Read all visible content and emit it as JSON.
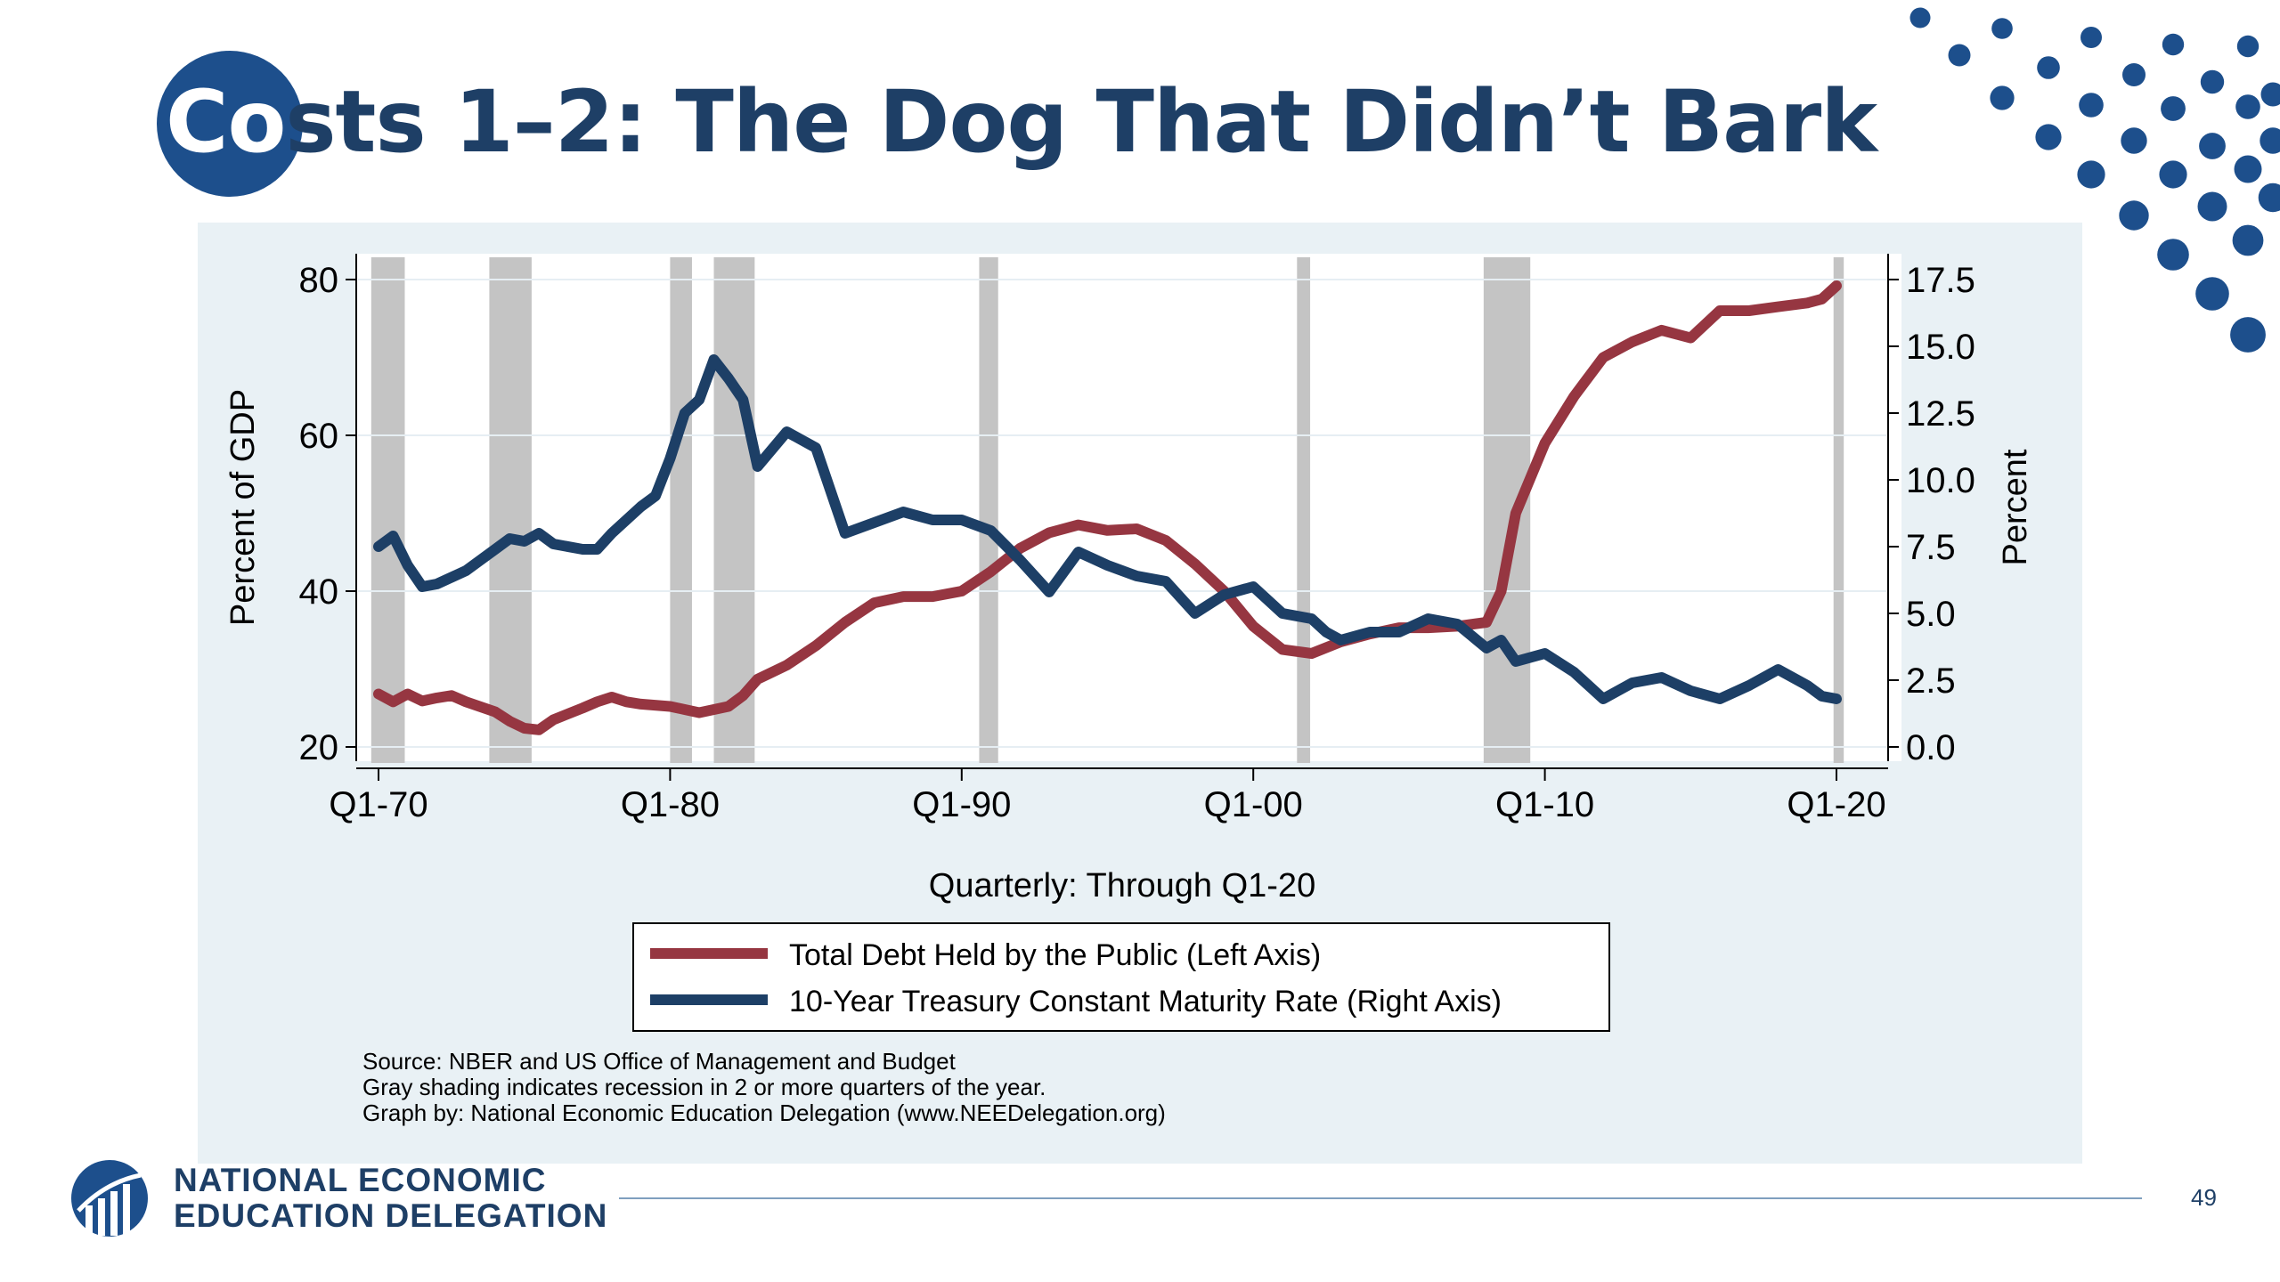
{
  "slide": {
    "title_prefix": "Co",
    "title_rest": "sts 1–2: The Dog That Didn’t Bark",
    "page_number": "49"
  },
  "branding": {
    "org_line1": "NATIONAL ECONOMIC",
    "org_line2": "EDUCATION DELEGATION",
    "accent_color": "#1d4f8c",
    "title_color": "#1e3f66"
  },
  "chart_data": {
    "type": "line",
    "x_label": "Quarterly: Through Q1-20",
    "y_left_label": "Percent of GDP",
    "y_right_label": "Percent",
    "x_range": [
      1970,
      2020
    ],
    "y_left_range": [
      20,
      80
    ],
    "y_right_range": [
      0,
      17.5
    ],
    "x_ticks": [
      {
        "x": 1970,
        "label": "Q1-70"
      },
      {
        "x": 1980,
        "label": "Q1-80"
      },
      {
        "x": 1990,
        "label": "Q1-90"
      },
      {
        "x": 2000,
        "label": "Q1-00"
      },
      {
        "x": 2010,
        "label": "Q1-10"
      },
      {
        "x": 2020,
        "label": "Q1-20"
      }
    ],
    "y_left_ticks": [
      "20",
      "40",
      "60",
      "80"
    ],
    "y_right_ticks": [
      "0.0",
      "2.5",
      "5.0",
      "7.5",
      "10.0",
      "12.5",
      "15.0",
      "17.5"
    ],
    "recessions": [
      [
        1969.75,
        1970.9
      ],
      [
        1973.8,
        1975.25
      ],
      [
        1980.0,
        1980.75
      ],
      [
        1981.5,
        1982.9
      ],
      [
        1990.6,
        1991.25
      ],
      [
        2001.5,
        2001.95
      ],
      [
        2007.9,
        2009.5
      ],
      [
        2019.9,
        2020.25
      ]
    ],
    "legend": {
      "placement": "bottom",
      "debt_label": "Total Debt Held by the Public (Left Axis)",
      "rate_label": "10-Year Treasury Constant Maturity Rate (Right Axis)"
    },
    "notes": [
      "Source: NBER and US Office of Management and Budget",
      "Gray shading indicates recession in 2 or more quarters of the year.",
      "Graph by: National Economic Education Delegation (www.NEEDelegation.org)"
    ],
    "series": [
      {
        "key": "debt",
        "axis": "left",
        "color": "#963641",
        "points": [
          [
            1970,
            26.8
          ],
          [
            1970.5,
            25.8
          ],
          [
            1971,
            26.8
          ],
          [
            1971.5,
            25.9
          ],
          [
            1972,
            26.3
          ],
          [
            1972.5,
            26.6
          ],
          [
            1973,
            25.8
          ],
          [
            1974,
            24.5
          ],
          [
            1974.5,
            23.3
          ],
          [
            1975,
            22.4
          ],
          [
            1975.5,
            22.2
          ],
          [
            1976,
            23.5
          ],
          [
            1977,
            25.0
          ],
          [
            1977.5,
            25.8
          ],
          [
            1978,
            26.4
          ],
          [
            1978.5,
            25.8
          ],
          [
            1979,
            25.5
          ],
          [
            1980,
            25.2
          ],
          [
            1980.5,
            24.8
          ],
          [
            1981,
            24.4
          ],
          [
            1981.5,
            24.8
          ],
          [
            1982,
            25.2
          ],
          [
            1982.5,
            26.6
          ],
          [
            1983,
            28.7
          ],
          [
            1984,
            30.5
          ],
          [
            1985,
            33.0
          ],
          [
            1986,
            36.0
          ],
          [
            1987,
            38.5
          ],
          [
            1988,
            39.3
          ],
          [
            1989,
            39.3
          ],
          [
            1990,
            40.0
          ],
          [
            1991,
            42.5
          ],
          [
            1992,
            45.5
          ],
          [
            1993,
            47.5
          ],
          [
            1994,
            48.5
          ],
          [
            1995,
            47.8
          ],
          [
            1996,
            48.0
          ],
          [
            1997,
            46.5
          ],
          [
            1998,
            43.5
          ],
          [
            1999,
            40.0
          ],
          [
            2000,
            35.5
          ],
          [
            2001,
            32.5
          ],
          [
            2002,
            32.0
          ],
          [
            2003,
            33.5
          ],
          [
            2004,
            34.5
          ],
          [
            2005,
            35.3
          ],
          [
            2006,
            35.3
          ],
          [
            2007,
            35.5
          ],
          [
            2008,
            36.0
          ],
          [
            2008.5,
            40.0
          ],
          [
            2009,
            50.0
          ],
          [
            2010,
            59.0
          ],
          [
            2011,
            65.0
          ],
          [
            2012,
            70.0
          ],
          [
            2013,
            72.0
          ],
          [
            2014,
            73.5
          ],
          [
            2015,
            72.5
          ],
          [
            2016,
            76.0
          ],
          [
            2017,
            76.0
          ],
          [
            2018,
            76.5
          ],
          [
            2019,
            77.0
          ],
          [
            2019.5,
            77.5
          ],
          [
            2020,
            79.2
          ]
        ]
      },
      {
        "key": "rate",
        "axis": "right",
        "color": "#1d3f66",
        "points": [
          [
            1970,
            7.5
          ],
          [
            1970.5,
            7.9
          ],
          [
            1971,
            6.8
          ],
          [
            1971.5,
            6.0
          ],
          [
            1972,
            6.1
          ],
          [
            1973,
            6.6
          ],
          [
            1974,
            7.4
          ],
          [
            1974.5,
            7.8
          ],
          [
            1975,
            7.7
          ],
          [
            1975.5,
            8.0
          ],
          [
            1976,
            7.6
          ],
          [
            1977,
            7.4
          ],
          [
            1977.5,
            7.4
          ],
          [
            1978,
            8.0
          ],
          [
            1979,
            9.0
          ],
          [
            1979.5,
            9.4
          ],
          [
            1980,
            10.8
          ],
          [
            1980.5,
            12.5
          ],
          [
            1981,
            13.0
          ],
          [
            1981.5,
            14.5
          ],
          [
            1982,
            13.8
          ],
          [
            1982.5,
            13.0
          ],
          [
            1983,
            10.5
          ],
          [
            1984,
            11.8
          ],
          [
            1985,
            11.2
          ],
          [
            1986,
            8.0
          ],
          [
            1987,
            8.4
          ],
          [
            1988,
            8.8
          ],
          [
            1989,
            8.5
          ],
          [
            1990,
            8.5
          ],
          [
            1991,
            8.1
          ],
          [
            1992,
            7.0
          ],
          [
            1993,
            5.8
          ],
          [
            1994,
            7.3
          ],
          [
            1995,
            6.8
          ],
          [
            1996,
            6.4
          ],
          [
            1997,
            6.2
          ],
          [
            1998,
            5.0
          ],
          [
            1999,
            5.7
          ],
          [
            2000,
            6.0
          ],
          [
            2001,
            5.0
          ],
          [
            2002,
            4.8
          ],
          [
            2002.5,
            4.3
          ],
          [
            2003,
            4.0
          ],
          [
            2004,
            4.3
          ],
          [
            2005,
            4.3
          ],
          [
            2006,
            4.8
          ],
          [
            2007,
            4.6
          ],
          [
            2008,
            3.7
          ],
          [
            2008.5,
            4.0
          ],
          [
            2009,
            3.2
          ],
          [
            2010,
            3.5
          ],
          [
            2011,
            2.8
          ],
          [
            2012,
            1.8
          ],
          [
            2013,
            2.4
          ],
          [
            2014,
            2.6
          ],
          [
            2015,
            2.1
          ],
          [
            2016,
            1.8
          ],
          [
            2017,
            2.3
          ],
          [
            2018,
            2.9
          ],
          [
            2019,
            2.3
          ],
          [
            2019.5,
            1.9
          ],
          [
            2020,
            1.8
          ]
        ]
      }
    ]
  }
}
